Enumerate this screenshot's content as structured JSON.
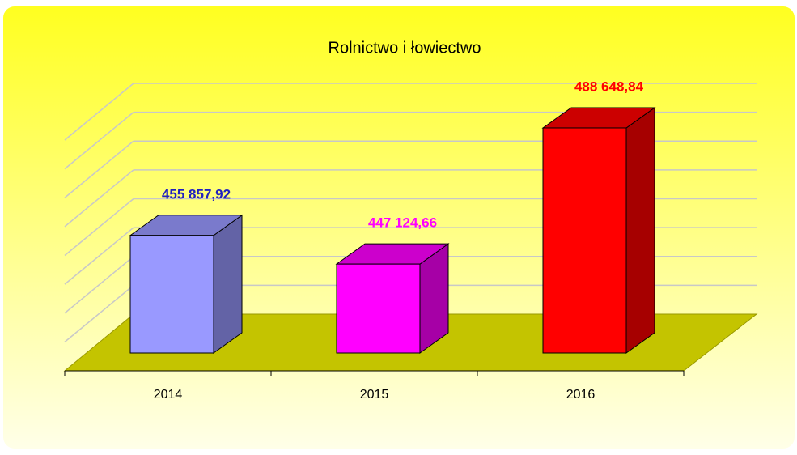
{
  "chart_data": {
    "type": "bar3d",
    "title": "Rolnictwo i łowiectwo",
    "categories": [
      "2014",
      "2015",
      "2016"
    ],
    "values": [
      455857.92,
      447124.66,
      488648.84
    ],
    "value_labels": [
      "455 857,92",
      "447 124,66",
      "488 648,84"
    ],
    "colors": [
      "#9999ff",
      "#ff00ff",
      "#ff0000"
    ],
    "label_colors": [
      "#2020c0",
      "#ff00ff",
      "#ff0000"
    ],
    "ylim": [
      420000,
      500000
    ],
    "yticks": [
      420000,
      430000,
      440000,
      450000,
      460000,
      470000,
      480000,
      490000,
      500000
    ],
    "grid": true
  }
}
